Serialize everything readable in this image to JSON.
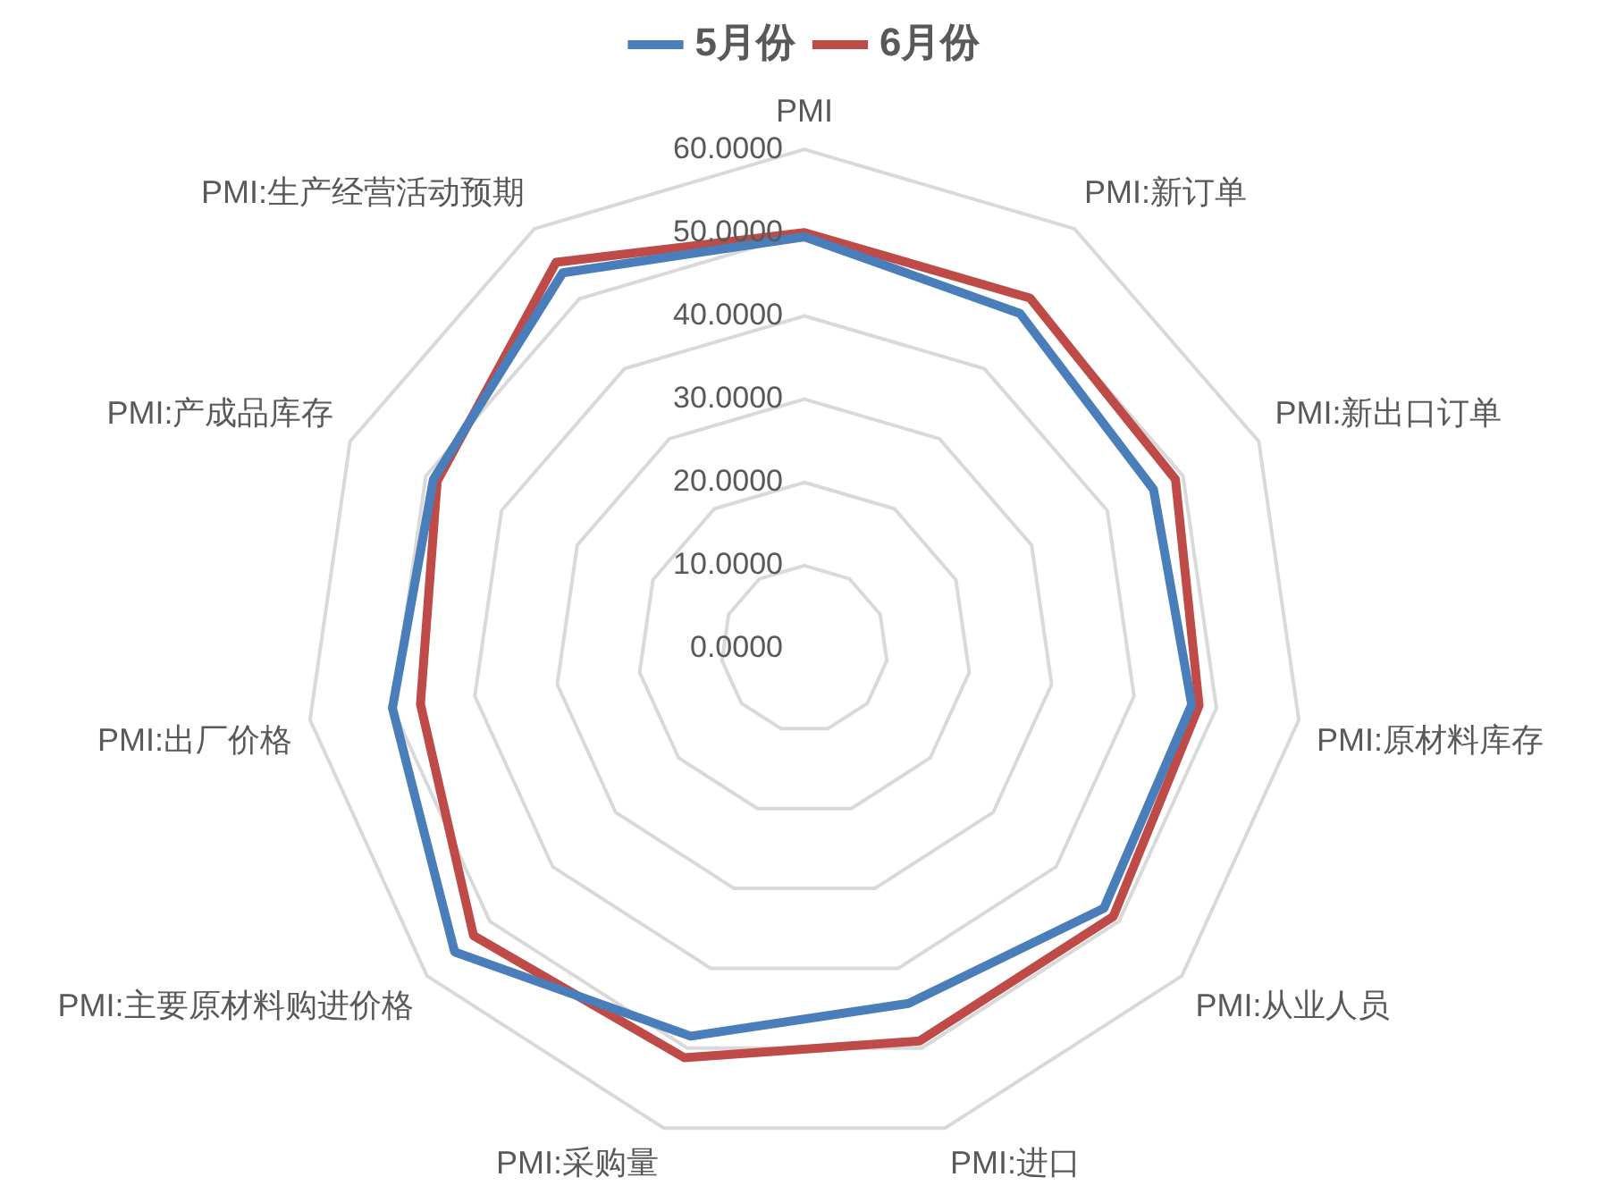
{
  "chart_data": {
    "type": "radar",
    "categories": [
      "PMI",
      "PMI:新订单",
      "PMI:新出口订单",
      "PMI:原材料库存",
      "PMI:从业人员",
      "PMI:进口",
      "PMI:采购量",
      "PMI:主要原材料购进价格",
      "PMI:出厂价格",
      "PMI:产成品库存",
      "PMI:生产经营活动预期"
    ],
    "series": [
      {
        "name": "5月份",
        "color": "#4a7ebb",
        "values": [
          49.5,
          47.9,
          46.1,
          47.0,
          47.6,
          44.4,
          48.5,
          55.6,
          50.0,
          49.0,
          53.7
        ]
      },
      {
        "name": "6月份",
        "color": "#be4b48",
        "values": [
          50.0,
          50.1,
          49.0,
          47.9,
          49.1,
          49.1,
          51.2,
          52.6,
          46.6,
          48.5,
          55.2
        ]
      }
    ],
    "ylim": [
      0,
      60
    ],
    "yticks": [
      {
        "value": 0,
        "label": "0.0000"
      },
      {
        "value": 10,
        "label": "10.0000"
      },
      {
        "value": 20,
        "label": "20.0000"
      },
      {
        "value": 30,
        "label": "30.0000"
      },
      {
        "value": 40,
        "label": "40.0000"
      },
      {
        "value": 50,
        "label": "50.0000"
      },
      {
        "value": 60,
        "label": "60.0000"
      }
    ],
    "grid": true,
    "legend": "top",
    "marker": "none",
    "line_style": "solid"
  }
}
